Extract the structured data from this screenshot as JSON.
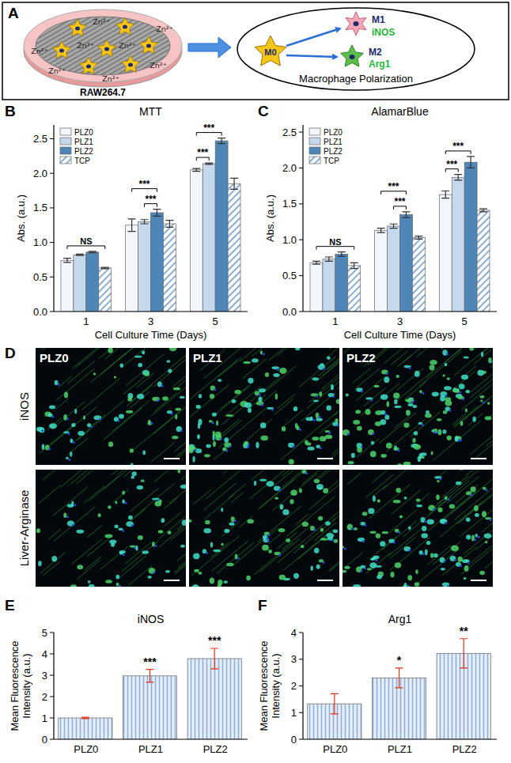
{
  "panel_labels": [
    "A",
    "B",
    "C",
    "D",
    "E",
    "F"
  ],
  "schematic": {
    "ion_labels": [
      "Zn²⁺",
      "Zn²⁺",
      "Zn²⁺",
      "Zn²⁺",
      "Zn²⁺",
      "Zn²⁺",
      "Zn²⁺",
      "Zn²⁺"
    ],
    "cell_line": "RAW264.7",
    "m0": "M0",
    "m1": "M1",
    "m1_marker": "iNOS",
    "m2": "M2",
    "m2_marker": "Arg1",
    "caption": "Macrophage Polarization"
  },
  "micrographs": {
    "rows": [
      "iNOS",
      "Liver-Arginase"
    ],
    "columns": [
      "PLZ0",
      "PLZ1",
      "PLZ2"
    ]
  },
  "chart_data": [
    {
      "type": "bar",
      "title": "MTT",
      "y_label": "Abs. (a.u.)",
      "x_label": "Cell Culture Time (Days)",
      "categories": [
        "1",
        "3",
        "5"
      ],
      "series": [
        {
          "name": "PLZ0",
          "color": "#f2f5f9",
          "values": [
            0.74,
            1.25,
            2.05
          ],
          "errors": [
            0.03,
            0.09,
            0.02
          ]
        },
        {
          "name": "PLZ1",
          "color": "#c6d9ec",
          "values": [
            0.82,
            1.3,
            2.14
          ],
          "errors": [
            0.01,
            0.03,
            0.01
          ]
        },
        {
          "name": "PLZ2",
          "color": "#4f86b8",
          "values": [
            0.86,
            1.43,
            2.47
          ],
          "errors": [
            0.01,
            0.05,
            0.04
          ]
        },
        {
          "name": "TCP",
          "color": "#6a95c0",
          "values": [
            0.63,
            1.27,
            1.85
          ],
          "errors": [
            0.01,
            0.05,
            0.08
          ]
        }
      ],
      "ylim": [
        0,
        2.7
      ],
      "yticks": [
        {
          "value": 0,
          "label": "0.0"
        },
        0.5,
        {
          "value": 1,
          "label": "1.0"
        },
        1.5,
        {
          "value": 2,
          "label": "2.0"
        },
        2.5
      ],
      "legend": "upper left",
      "annotations": [
        {
          "text": "NS",
          "category": 0,
          "from": 0,
          "to": 3
        },
        {
          "text": "***",
          "category": 1,
          "from": 1,
          "to": 2
        },
        {
          "text": "***",
          "category": 1,
          "from": 0,
          "to": 2
        },
        {
          "text": "***",
          "category": 2,
          "from": 0,
          "to": 1
        },
        {
          "text": "***",
          "category": 2,
          "from": 0,
          "to": 2
        }
      ]
    },
    {
      "type": "bar",
      "title": "AlamarBlue",
      "y_label": "Abs. (a.u.)",
      "x_label": "Cell Culture Time (Days)",
      "categories": [
        "1",
        "3",
        "5"
      ],
      "series": [
        {
          "name": "PLZ0",
          "color": "#f2f5f9",
          "values": [
            0.68,
            1.13,
            1.63
          ],
          "errors": [
            0.02,
            0.03,
            0.05
          ]
        },
        {
          "name": "PLZ1",
          "color": "#c6d9ec",
          "values": [
            0.73,
            1.19,
            1.87
          ],
          "errors": [
            0.03,
            0.03,
            0.04
          ]
        },
        {
          "name": "PLZ2",
          "color": "#4f86b8",
          "values": [
            0.8,
            1.35,
            2.08
          ],
          "errors": [
            0.03,
            0.04,
            0.08
          ]
        },
        {
          "name": "TCP",
          "color": "#6a95c0",
          "values": [
            0.64,
            1.03,
            1.41
          ],
          "errors": [
            0.04,
            0.02,
            0.02
          ]
        }
      ],
      "ylim": [
        0,
        2.6
      ],
      "yticks": [
        {
          "value": 0,
          "label": "0.0"
        },
        0.5,
        {
          "value": 1,
          "label": "1.0"
        },
        1.5,
        {
          "value": 2,
          "label": "2.0"
        },
        2.5
      ],
      "legend": "upper left",
      "annotations": [
        {
          "text": "NS",
          "category": 0,
          "from": 0,
          "to": 3
        },
        {
          "text": "***",
          "category": 1,
          "from": 1,
          "to": 2
        },
        {
          "text": "***",
          "category": 1,
          "from": 0,
          "to": 2
        },
        {
          "text": "***",
          "category": 2,
          "from": 0,
          "to": 1
        },
        {
          "text": "***",
          "category": 2,
          "from": 0,
          "to": 2
        }
      ]
    },
    {
      "type": "bar",
      "title": "iNOS",
      "y_label": "Mean Fluorescence Intensity (a.u.)",
      "categories": [
        "PLZ0",
        "PLZ1",
        "PLZ2"
      ],
      "values": [
        1.0,
        2.97,
        3.78
      ],
      "errors": [
        0.03,
        0.3,
        0.48
      ],
      "color": "#8fb1d6",
      "ylim": [
        0,
        5
      ],
      "yticks": [
        0,
        1,
        2,
        3,
        4,
        5
      ],
      "annotations": [
        {
          "text": "***",
          "category": 1
        },
        {
          "text": "***",
          "category": 2
        }
      ]
    },
    {
      "type": "bar",
      "title": "Arg1",
      "y_label": "Mean Fluorescence Intensity (a.u.)",
      "categories": [
        "PLZ0",
        "PLZ1",
        "PLZ2"
      ],
      "values": [
        1.33,
        2.3,
        3.22
      ],
      "errors": [
        0.38,
        0.37,
        0.55
      ],
      "color": "#8fb1d6",
      "ylim": [
        0,
        4
      ],
      "yticks": [
        0,
        1,
        2,
        3,
        4
      ],
      "annotations": [
        {
          "text": "*",
          "category": 1
        },
        {
          "text": "**",
          "category": 2
        }
      ]
    }
  ]
}
